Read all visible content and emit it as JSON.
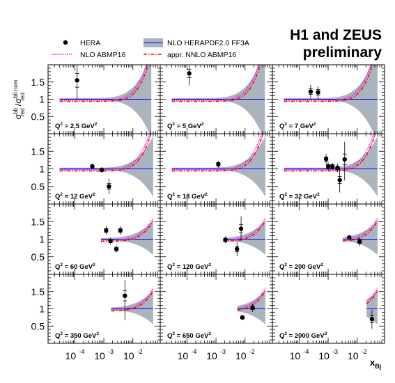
{
  "title": {
    "line1": "H1 and ZEUS",
    "line2": "preliminary"
  },
  "legend": [
    {
      "key": "hera",
      "label": "HERA",
      "marker": "dot",
      "color": "#000000"
    },
    {
      "key": "herapdf",
      "label": "NLO HERAPDF2.0 FF3A",
      "marker": "band",
      "color": "#aab4bf",
      "line_color": "#0000ff"
    },
    {
      "key": "nlo_abmp",
      "label": "NLO ABMP16",
      "marker": "dotted",
      "color": "#ff00ff"
    },
    {
      "key": "nnlo_abmp",
      "label": "appr. NNLO ABMP16",
      "marker": "dashdot",
      "color": "#ff0000"
    }
  ],
  "ylabel": {
    "base": "σ",
    "sup1": "bb̄",
    "sub1": "red",
    "sep": " /σ",
    "sup2": "bb̄ nom",
    "sub2": "red"
  },
  "xlabel": {
    "base": "x",
    "sub": "Bj"
  },
  "chart_data": {
    "type": "scatter",
    "xscale": "log",
    "xlim": [
      1.5e-05,
      0.07
    ],
    "ylim": [
      0.0,
      2.0
    ],
    "x_tick_labels": [
      "10",
      "10",
      "10"
    ],
    "x_tick_exponents": [
      "-4",
      "-3",
      "-2"
    ],
    "x_tick_values": [
      0.0001,
      0.001,
      0.01
    ],
    "y_tick_labels": [
      "0.5",
      "1",
      "1.5"
    ],
    "y_tick_values": [
      0.5,
      1.0,
      1.5
    ],
    "panels": [
      {
        "q2_label": "Q",
        "q2_sup": "2",
        "q2_value": " = 2.5 GeV",
        "q2_unit_sup": "2",
        "points": [
          {
            "x": 0.00012,
            "y": 1.55,
            "err_up": 0.45,
            "err_down": 0.55,
            "err_inner": 0.2
          }
        ],
        "theory_xmin": 3e-05,
        "theory_xmax": 0.043
      },
      {
        "q2_label": "Q",
        "q2_sup": "2",
        "q2_value": " = 5 GeV",
        "q2_unit_sup": "2",
        "points": [
          {
            "x": 0.00012,
            "y": 1.75,
            "err_up": 0.3,
            "err_down": 0.35,
            "err_inner": 0.12
          }
        ],
        "theory_xmin": 3e-05,
        "theory_xmax": 0.048
      },
      {
        "q2_label": "Q",
        "q2_sup": "2",
        "q2_value": " = 7 GeV",
        "q2_unit_sup": "2",
        "points": [
          {
            "x": 0.00025,
            "y": 1.22,
            "err_up": 0.2,
            "err_down": 0.2,
            "err_inner": 0.08
          },
          {
            "x": 0.00045,
            "y": 1.2,
            "err_up": 0.18,
            "err_down": 0.2,
            "err_inner": 0.08
          }
        ],
        "theory_xmin": 3e-05,
        "theory_xmax": 0.05
      },
      {
        "q2_label": "Q",
        "q2_sup": "2",
        "q2_value": " = 12 GeV",
        "q2_unit_sup": "2",
        "points": [
          {
            "x": 0.0004,
            "y": 1.07,
            "err_up": 0.08,
            "err_down": 0.08,
            "err_inner": 0.04
          },
          {
            "x": 0.00085,
            "y": 0.97,
            "err_up": 0.08,
            "err_down": 0.08,
            "err_inner": 0.04
          },
          {
            "x": 0.0015,
            "y": 0.5,
            "err_up": 0.22,
            "err_down": 0.22,
            "err_inner": 0.08
          }
        ],
        "theory_xmin": 3e-05,
        "theory_xmax": 0.05
      },
      {
        "q2_label": "Q",
        "q2_sup": "2",
        "q2_value": " = 18 GeV",
        "q2_unit_sup": "2",
        "points": [
          {
            "x": 0.0012,
            "y": 1.13,
            "err_up": 0.1,
            "err_down": 0.1,
            "err_inner": 0.05
          }
        ],
        "theory_xmin": 3e-05,
        "theory_xmax": 0.05
      },
      {
        "q2_label": "Q",
        "q2_sup": "2",
        "q2_value": " = 32 GeV",
        "q2_unit_sup": "2",
        "points": [
          {
            "x": 0.00085,
            "y": 1.28,
            "err_up": 0.15,
            "err_down": 0.15,
            "err_inner": 0.06
          },
          {
            "x": 0.001,
            "y": 1.07,
            "err_up": 0.12,
            "err_down": 0.12,
            "err_inner": 0.05
          },
          {
            "x": 0.0014,
            "y": 1.07,
            "err_up": 0.1,
            "err_down": 0.1,
            "err_inner": 0.05
          },
          {
            "x": 0.0021,
            "y": 1.03,
            "err_up": 0.12,
            "err_down": 0.12,
            "err_inner": 0.05
          },
          {
            "x": 0.0025,
            "y": 0.68,
            "err_up": 0.35,
            "err_down": 0.35,
            "err_inner": 0.1
          },
          {
            "x": 0.0037,
            "y": 1.27,
            "err_up": 0.5,
            "err_down": 0.6,
            "err_inner": 0.15
          }
        ],
        "theory_xmin": 3e-05,
        "theory_xmax": 0.05
      },
      {
        "q2_label": "Q",
        "q2_sup": "2",
        "q2_value": " = 60 GeV",
        "q2_unit_sup": "2",
        "points": [
          {
            "x": 0.0012,
            "y": 1.25,
            "err_up": 0.12,
            "err_down": 0.12,
            "err_inner": 0.05
          },
          {
            "x": 0.0017,
            "y": 0.95,
            "err_up": 0.1,
            "err_down": 0.1,
            "err_inner": 0.05
          },
          {
            "x": 0.0027,
            "y": 0.72,
            "err_up": 0.1,
            "err_down": 0.1,
            "err_inner": 0.05
          },
          {
            "x": 0.0037,
            "y": 1.25,
            "err_up": 0.12,
            "err_down": 0.12,
            "err_inner": 0.05
          }
        ],
        "theory_xmin": 0.0008,
        "theory_xmax": 0.05
      },
      {
        "q2_label": "Q",
        "q2_sup": "2",
        "q2_value": " = 120 GeV",
        "q2_unit_sup": "2",
        "points": [
          {
            "x": 0.0021,
            "y": 0.98,
            "err_up": 0.1,
            "err_down": 0.1,
            "err_inner": 0.05
          },
          {
            "x": 0.0053,
            "y": 0.72,
            "err_up": 0.2,
            "err_down": 0.2,
            "err_inner": 0.08
          },
          {
            "x": 0.0073,
            "y": 1.3,
            "err_up": 0.35,
            "err_down": 0.35,
            "err_inner": 0.12
          }
        ],
        "theory_xmin": 0.0018,
        "theory_xmax": 0.05
      },
      {
        "q2_label": "Q",
        "q2_sup": "2",
        "q2_value": " = 200 GeV",
        "q2_unit_sup": "2",
        "points": [
          {
            "x": 0.0053,
            "y": 1.05,
            "err_up": 0.06,
            "err_down": 0.06,
            "err_inner": 0.03
          },
          {
            "x": 0.0121,
            "y": 0.93,
            "err_up": 0.12,
            "err_down": 0.12,
            "err_inner": 0.05
          }
        ],
        "theory_xmin": 0.0032,
        "theory_xmax": 0.05
      },
      {
        "q2_label": "Q",
        "q2_sup": "2",
        "q2_value": " = 350 GeV",
        "q2_unit_sup": "2",
        "points": [
          {
            "x": 0.0053,
            "y": 1.38,
            "err_up": 0.45,
            "err_down": 0.7,
            "err_inner": 0.15
          }
        ],
        "theory_xmin": 0.0018,
        "theory_xmax": 0.05
      },
      {
        "q2_label": "Q",
        "q2_sup": "2",
        "q2_value": " = 650 GeV",
        "q2_unit_sup": "2",
        "points": [
          {
            "x": 0.0081,
            "y": 0.75,
            "err_up": 0.07,
            "err_down": 0.07,
            "err_inner": 0.04
          },
          {
            "x": 0.0181,
            "y": 1.03,
            "err_up": 0.12,
            "err_down": 0.12,
            "err_inner": 0.05
          }
        ],
        "theory_xmin": 0.0054,
        "theory_xmax": 0.05
      },
      {
        "q2_label": "Q",
        "q2_sup": "2",
        "q2_value": " = 2000 GeV",
        "q2_unit_sup": "2",
        "points": [
          {
            "x": 0.0321,
            "y": 0.7,
            "err_up": 0.28,
            "err_down": 0.28,
            "err_inner": 0.1
          }
        ],
        "theory_xmin": 0.021,
        "theory_xmax": 0.05
      }
    ]
  }
}
